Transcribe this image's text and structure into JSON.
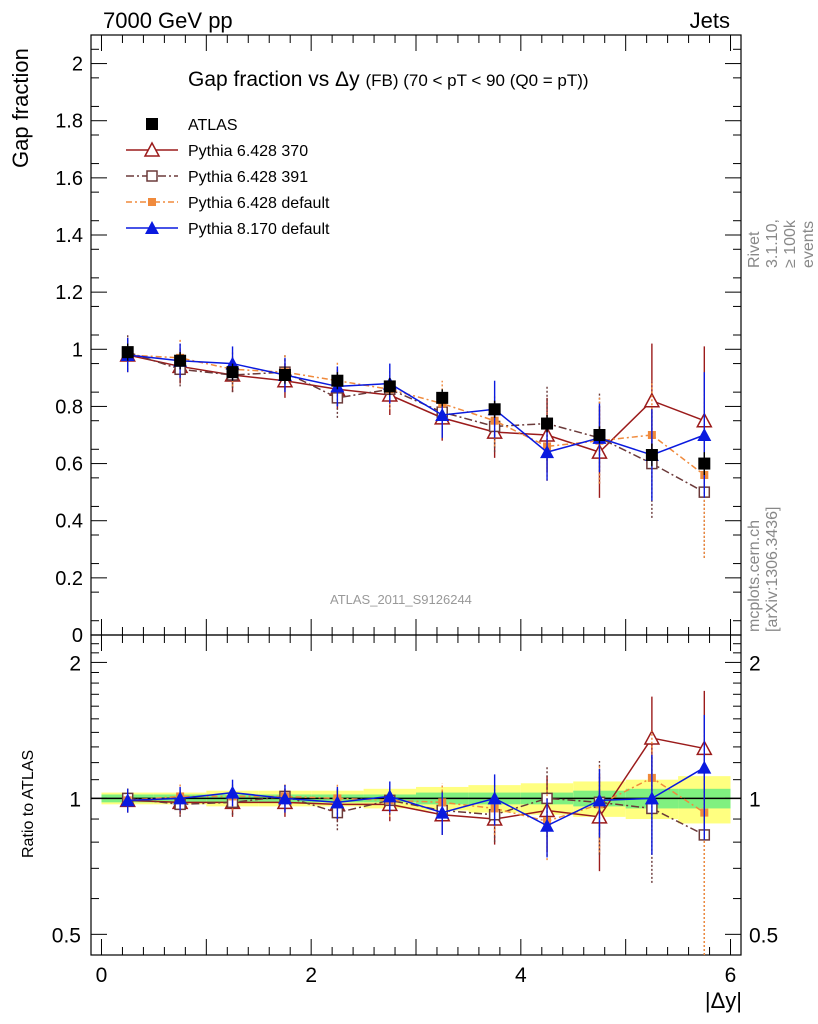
{
  "header": {
    "left": "7000 GeV pp",
    "right": "Jets"
  },
  "side_notes": {
    "rivet": "Rivet 3.1.10, ≥ 100k events",
    "mcplots": "mcplots.cern.ch [arXiv:1306.3436]"
  },
  "chart_data": [
    {
      "type": "scatter",
      "title": "Gap fraction vs Δy",
      "title_suffix": "(FB) (70 < pT <  90 (Q0 = pT))",
      "ylabel": "Gap fraction",
      "xlabel": "|Δy|",
      "watermark": "ATLAS_2011_S9126244",
      "ylim": [
        0,
        2.1
      ],
      "xlim": [
        -0.1,
        6.1
      ],
      "y_ticks": [
        "0",
        "0.2",
        "0.4",
        "0.6",
        "0.8",
        "1",
        "1.2",
        "1.4",
        "1.6",
        "1.8",
        "2"
      ],
      "x": [
        0.25,
        0.75,
        1.25,
        1.75,
        2.25,
        2.75,
        3.25,
        3.75,
        4.25,
        4.75,
        5.25,
        5.75
      ],
      "legend_position": "top-left",
      "series": [
        {
          "name": "ATLAS",
          "color": "#000000",
          "marker": "filled-square",
          "values": [
            0.99,
            0.96,
            0.92,
            0.91,
            0.89,
            0.87,
            0.83,
            0.79,
            0.74,
            0.7,
            0.63,
            0.6
          ],
          "errors": [
            0.03,
            0.03,
            0.03,
            0.03,
            0.03,
            0.03,
            0.03,
            0.03,
            0.03,
            0.03,
            0.04,
            0.04
          ]
        },
        {
          "name": "Pythia 6.428 370",
          "color": "#9b1b1b",
          "marker": "open-triangle",
          "values": [
            0.98,
            0.94,
            0.91,
            0.89,
            0.86,
            0.84,
            0.76,
            0.71,
            0.7,
            0.64,
            0.82,
            0.75
          ],
          "errors": [
            0.06,
            0.06,
            0.06,
            0.06,
            0.07,
            0.07,
            0.08,
            0.09,
            0.13,
            0.16,
            0.2,
            0.26
          ]
        },
        {
          "name": "Pythia 6.428 391",
          "color": "#6b3a3a",
          "marker": "open-square",
          "values": [
            0.99,
            0.93,
            0.91,
            0.92,
            0.83,
            0.86,
            0.78,
            0.73,
            0.74,
            0.69,
            0.6,
            0.5
          ],
          "errors": [
            0.06,
            0.06,
            0.06,
            0.06,
            0.07,
            0.07,
            0.08,
            0.09,
            0.13,
            0.16,
            0.19,
            0.23
          ]
        },
        {
          "name": "Pythia 6.428 default",
          "color": "#f08a3c",
          "marker": "filled-square-small",
          "values": [
            0.98,
            0.97,
            0.93,
            0.92,
            0.89,
            0.86,
            0.81,
            0.75,
            0.66,
            0.68,
            0.7,
            0.56
          ],
          "errors": [
            0.06,
            0.07,
            0.06,
            0.06,
            0.07,
            0.07,
            0.08,
            0.09,
            0.12,
            0.15,
            0.19,
            0.29
          ]
        },
        {
          "name": "Pythia 8.170 default",
          "color": "#0a1adf",
          "marker": "filled-triangle",
          "values": [
            0.98,
            0.96,
            0.95,
            0.91,
            0.87,
            0.88,
            0.77,
            0.79,
            0.64,
            0.69,
            0.63,
            0.7
          ],
          "errors": [
            0.06,
            0.06,
            0.06,
            0.06,
            0.07,
            0.07,
            0.08,
            0.1,
            0.1,
            0.12,
            0.16,
            0.22
          ]
        }
      ]
    },
    {
      "type": "scatter",
      "ylabel": "Ratio to ATLAS",
      "ylim": [
        0.45,
        2.3
      ],
      "y_scale": "log",
      "y_ticks": [
        "0.5",
        "1",
        "2"
      ],
      "x_ticks": [
        "0",
        "2",
        "4",
        "6"
      ],
      "band_colors": {
        "inner": "#80f080",
        "outer": "#ffff80"
      },
      "band_inner": [
        0.02,
        0.02,
        0.02,
        0.02,
        0.02,
        0.02,
        0.03,
        0.03,
        0.03,
        0.04,
        0.05,
        0.05
      ],
      "band_outer": [
        0.03,
        0.03,
        0.04,
        0.04,
        0.04,
        0.05,
        0.06,
        0.07,
        0.08,
        0.09,
        0.1,
        0.12
      ],
      "series": [
        {
          "name": "Pythia 6.428 370",
          "color": "#9b1b1b",
          "values": [
            0.99,
            0.98,
            0.98,
            0.98,
            0.97,
            0.97,
            0.92,
            0.9,
            0.94,
            0.91,
            1.36,
            1.29
          ],
          "errors": [
            0.06,
            0.06,
            0.07,
            0.07,
            0.08,
            0.08,
            0.09,
            0.11,
            0.18,
            0.22,
            0.32,
            0.44
          ]
        },
        {
          "name": "Pythia 6.428 391",
          "color": "#6b3a3a",
          "values": [
            1.0,
            0.97,
            0.98,
            1.01,
            0.93,
            0.99,
            0.94,
            0.92,
            1.0,
            0.98,
            0.95,
            0.83
          ],
          "errors": [
            0.06,
            0.06,
            0.06,
            0.07,
            0.08,
            0.08,
            0.1,
            0.12,
            0.18,
            0.23,
            0.3,
            0.39
          ]
        },
        {
          "name": "Pythia 6.428 default",
          "color": "#f08a3c",
          "values": [
            0.99,
            1.01,
            1.01,
            1.01,
            1.0,
            0.99,
            0.98,
            0.95,
            0.89,
            0.97,
            1.11,
            0.93
          ],
          "errors": [
            0.06,
            0.07,
            0.07,
            0.07,
            0.08,
            0.08,
            0.1,
            0.12,
            0.16,
            0.21,
            0.3,
            0.48
          ]
        },
        {
          "name": "Pythia 8.170 default",
          "color": "#0a1adf",
          "values": [
            0.99,
            1.0,
            1.03,
            1.0,
            0.98,
            1.01,
            0.93,
            1.0,
            0.87,
            0.99,
            1.0,
            1.17
          ],
          "errors": [
            0.06,
            0.06,
            0.07,
            0.07,
            0.08,
            0.08,
            0.1,
            0.13,
            0.13,
            0.17,
            0.25,
            0.36
          ]
        }
      ]
    }
  ]
}
